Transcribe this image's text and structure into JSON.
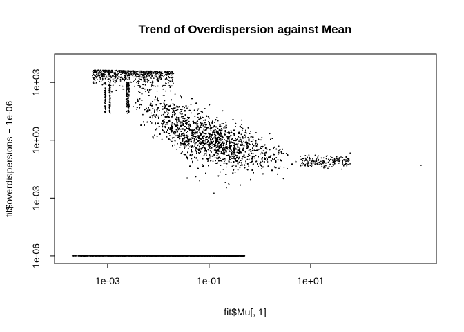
{
  "chart_data": {
    "type": "scatter",
    "title": "Trend of Overdispersion against Mean",
    "xlabel": "fit$Mu[, 1]",
    "ylabel": "fit$overdispersions + 1e-06",
    "x_scale": "log10",
    "y_scale": "log10",
    "xlim": [
      9e-05,
      3000
    ],
    "ylim": [
      4e-07,
      30000
    ],
    "x_ticks": [
      {
        "value": 0.001,
        "label": "1e-03"
      },
      {
        "value": 0.1,
        "label": "1e-01"
      },
      {
        "value": 10,
        "label": "1e+01"
      }
    ],
    "y_ticks": [
      {
        "value": 1e-06,
        "label": "1e-06"
      },
      {
        "value": 0.001,
        "label": "1e-03"
      },
      {
        "value": 1,
        "label": "1e+00"
      },
      {
        "value": 1000,
        "label": "1e+03"
      }
    ],
    "grid": false,
    "legend": "none",
    "point_color": "#000000",
    "n_points_approx": 12000,
    "point_groups": [
      {
        "name": "main cloud",
        "x_range": [
          0.004,
          50
        ],
        "y_center_at_x": [
          [
            0.004,
            100
          ],
          [
            0.05,
            2
          ],
          [
            0.3,
            0.5
          ],
          [
            5,
            0.1
          ],
          [
            50,
            0.07
          ]
        ],
        "count": 9500
      },
      {
        "name": "zero-dispersion floor",
        "x_range": [
          0.0002,
          0.5
        ],
        "y": 1e-06,
        "count": 2000
      },
      {
        "name": "high-dispersion upper band",
        "x_range": [
          0.0005,
          0.015
        ],
        "y_range": [
          100,
          5000
        ],
        "count": 600
      },
      {
        "name": "outlier",
        "x": 1500,
        "y": 0.05
      }
    ]
  }
}
